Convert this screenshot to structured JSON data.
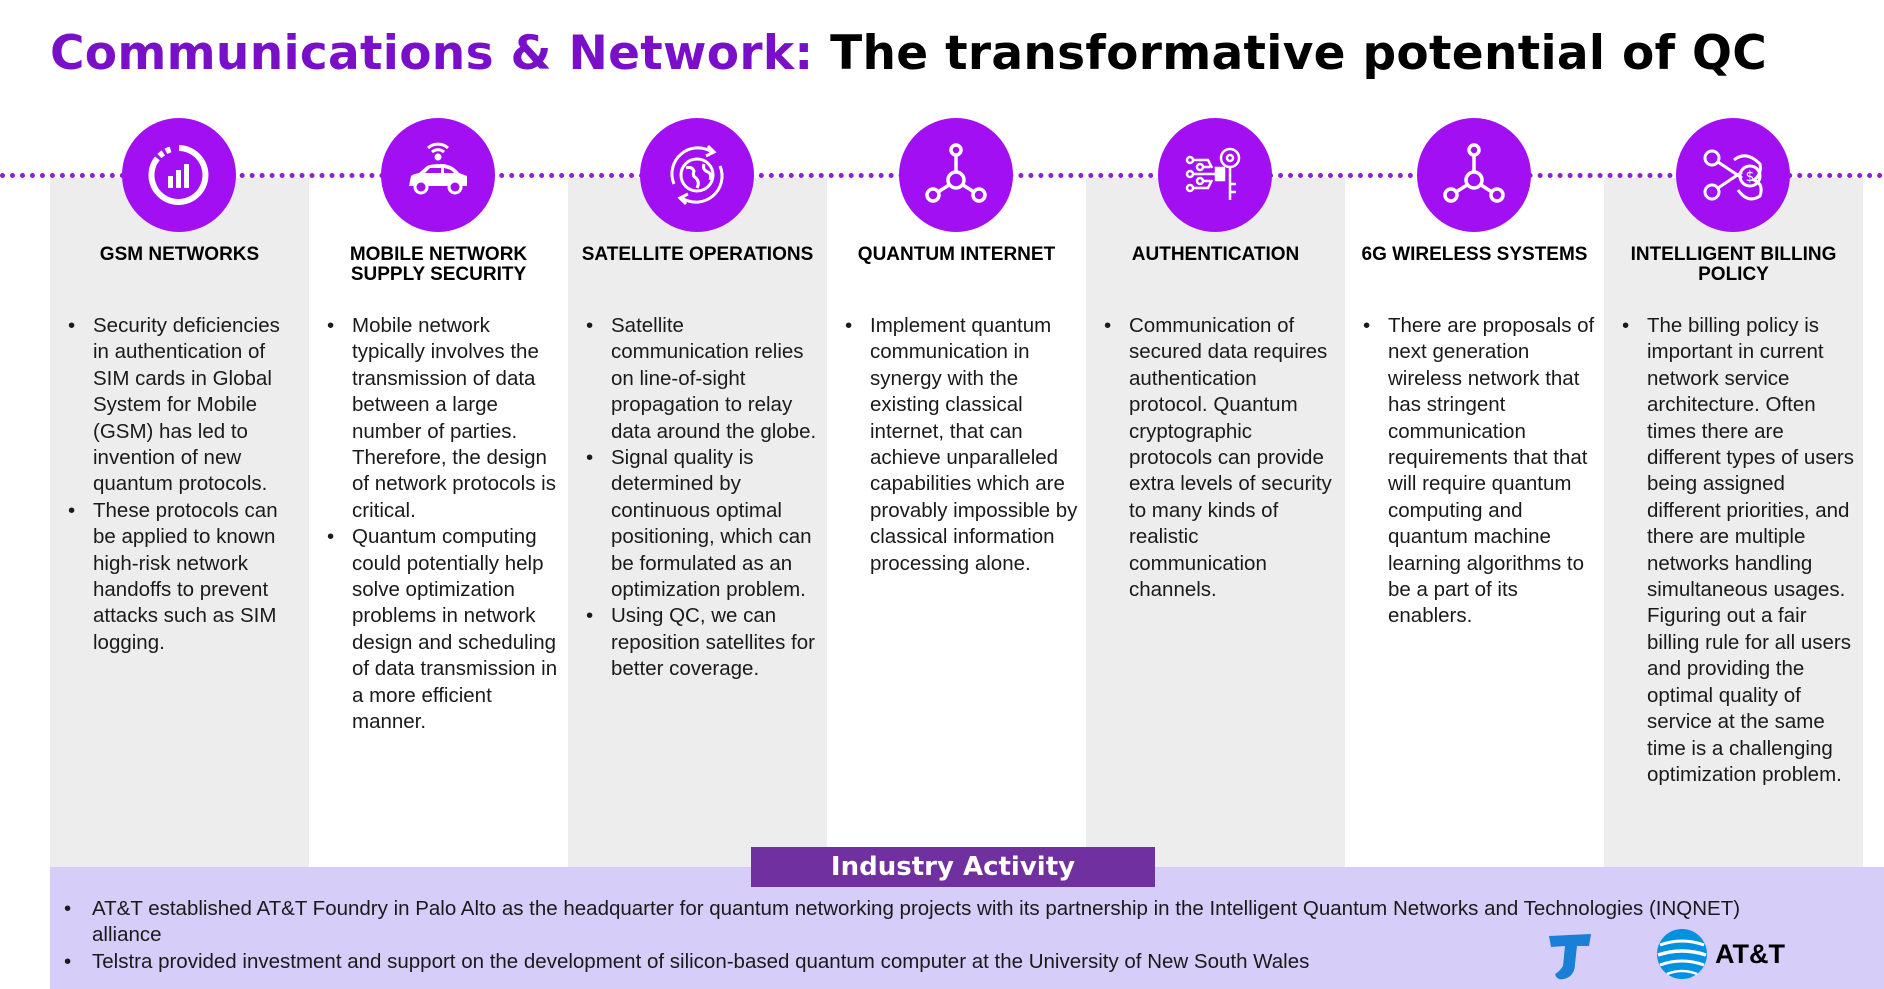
{
  "title": {
    "accent": "Communications & Network:",
    "rest": "The transformative potential of QC"
  },
  "columns": [
    {
      "icon": "gauge-chart-icon",
      "title": "GSM NETWORKS",
      "bullets": [
        "Security deficiencies in authentication of SIM cards in Global System for Mobile (GSM) has led to invention of new quantum protocols.",
        "These protocols can be applied to known high-risk network handoffs to prevent attacks such as SIM logging."
      ]
    },
    {
      "icon": "connected-car-icon",
      "title": "MOBILE NETWORK SUPPLY SECURITY",
      "bullets": [
        "Mobile network typically involves the transmission of data between a large number of parties. Therefore, the design of network protocols is critical.",
        "Quantum computing could potentially help solve optimization problems in network design and scheduling of data transmission in a more efficient manner."
      ]
    },
    {
      "icon": "globe-rotate-icon",
      "title": "SATELLITE OPERATIONS",
      "bullets": [
        "Satellite communication relies on line-of-sight propagation to relay data around the globe.",
        "Signal quality is determined by continuous optimal positioning, which can be formulated as an optimization problem.",
        "Using QC, we can reposition satellites for better coverage."
      ]
    },
    {
      "icon": "network-hub-icon",
      "title": "QUANTUM INTERNET",
      "bullets": [
        "Implement quantum communication in synergy with the existing classical internet, that can achieve unparalleled capabilities which are provably impossible by classical information processing alone."
      ]
    },
    {
      "icon": "circuit-key-icon",
      "title": "AUTHENTICATION",
      "bullets": [
        "Communication of secured data requires authentication protocol. Quantum cryptographic protocols can provide extra levels of security to many kinds of realistic communication channels."
      ]
    },
    {
      "icon": "network-hub-icon",
      "title": "6G WIRELESS SYSTEMS",
      "bullets": [
        "There are proposals of next generation wireless network that has stringent communication requirements that that will require quantum computing and quantum machine learning algorithms to be a part of its enablers."
      ]
    },
    {
      "icon": "billing-scissors-icon",
      "title": "INTELLIGENT BILLING POLICY",
      "bullets": [
        "The billing policy is important in current network service architecture. Often times there are different types of users being assigned different priorities, and there are multiple networks handling simultaneous usages. Figuring out a fair billing rule for all users and providing the optimal quality of service at the same time is a challenging optimization problem."
      ]
    }
  ],
  "industry": {
    "label": "Industry Activity",
    "items": [
      "AT&T established AT&T Foundry in Palo Alto as the headquarter for quantum networking projects with its partnership in the Intelligent Quantum Networks and Technologies (INQNET) alliance",
      "Telstra provided investment and support on the development of silicon-based quantum computer at the University of New South Wales"
    ]
  },
  "logos": {
    "att": "AT&T"
  },
  "colors": {
    "accent": "#7a0fc9",
    "icon_circle": "#a20ff2",
    "column_shade": "#ededed",
    "industry_bg": "#d7cdf9",
    "industry_tab": "#7030a0",
    "telstra_blue": "#1a7fd6",
    "att_blue": "#0091e0"
  }
}
